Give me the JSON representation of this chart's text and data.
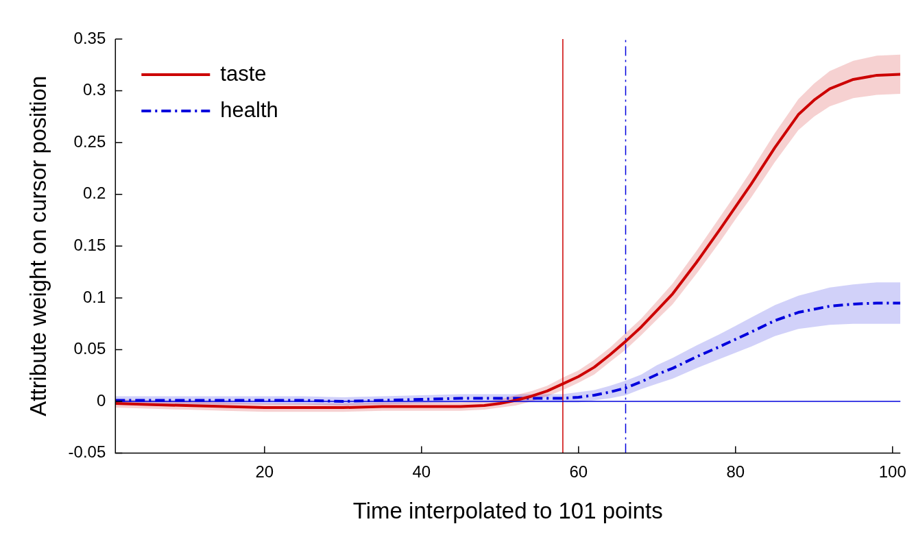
{
  "chart_data": {
    "type": "line",
    "xlabel": "Time interpolated to 101 points",
    "ylabel": "Attribute weight on cursor position",
    "x": [
      1,
      5,
      10,
      15,
      20,
      25,
      30,
      35,
      40,
      45,
      48,
      50,
      52,
      54,
      56,
      58,
      60,
      62,
      64,
      66,
      68,
      70,
      72,
      75,
      78,
      80,
      82,
      85,
      88,
      90,
      92,
      95,
      98,
      101
    ],
    "series": [
      {
        "name": "taste",
        "color": "#cc0000",
        "line_style": "solid",
        "values": [
          -0.002,
          -0.003,
          -0.004,
          -0.005,
          -0.006,
          -0.006,
          -0.006,
          -0.005,
          -0.005,
          -0.005,
          -0.004,
          -0.002,
          0.001,
          0.005,
          0.01,
          0.017,
          0.024,
          0.033,
          0.045,
          0.058,
          0.072,
          0.088,
          0.104,
          0.134,
          0.166,
          0.188,
          0.21,
          0.245,
          0.277,
          0.291,
          0.302,
          0.311,
          0.315,
          0.316
        ],
        "lower": [
          -0.006,
          -0.007,
          -0.008,
          -0.009,
          -0.01,
          -0.01,
          -0.01,
          -0.009,
          -0.009,
          -0.009,
          -0.008,
          -0.006,
          -0.004,
          0.0,
          0.005,
          0.011,
          0.018,
          0.026,
          0.038,
          0.05,
          0.064,
          0.079,
          0.094,
          0.123,
          0.154,
          0.176,
          0.197,
          0.231,
          0.262,
          0.275,
          0.285,
          0.293,
          0.296,
          0.297
        ],
        "upper": [
          0.002,
          0.001,
          0.0,
          -0.001,
          -0.002,
          -0.002,
          -0.002,
          -0.001,
          -0.001,
          -0.001,
          0.0,
          0.002,
          0.006,
          0.01,
          0.015,
          0.023,
          0.03,
          0.04,
          0.052,
          0.066,
          0.08,
          0.097,
          0.114,
          0.145,
          0.178,
          0.2,
          0.223,
          0.259,
          0.292,
          0.307,
          0.319,
          0.329,
          0.334,
          0.335
        ]
      },
      {
        "name": "health",
        "color": "#0000dd",
        "line_style": "dashed",
        "values": [
          0.001,
          0.001,
          0.001,
          0.001,
          0.001,
          0.001,
          0.0,
          0.001,
          0.002,
          0.003,
          0.003,
          0.003,
          0.003,
          0.003,
          0.003,
          0.003,
          0.004,
          0.006,
          0.009,
          0.013,
          0.019,
          0.026,
          0.032,
          0.043,
          0.053,
          0.06,
          0.067,
          0.078,
          0.086,
          0.089,
          0.092,
          0.094,
          0.095,
          0.095
        ],
        "lower": [
          -0.003,
          -0.003,
          -0.003,
          -0.003,
          -0.003,
          -0.003,
          -0.004,
          -0.003,
          -0.002,
          -0.001,
          -0.001,
          -0.001,
          -0.001,
          -0.001,
          -0.001,
          -0.001,
          -0.001,
          0.001,
          0.003,
          0.006,
          0.012,
          0.017,
          0.022,
          0.032,
          0.041,
          0.047,
          0.053,
          0.063,
          0.07,
          0.072,
          0.074,
          0.075,
          0.075,
          0.075
        ],
        "upper": [
          0.005,
          0.005,
          0.005,
          0.005,
          0.005,
          0.005,
          0.004,
          0.005,
          0.006,
          0.007,
          0.007,
          0.007,
          0.007,
          0.007,
          0.007,
          0.007,
          0.009,
          0.011,
          0.015,
          0.02,
          0.026,
          0.035,
          0.042,
          0.054,
          0.065,
          0.073,
          0.081,
          0.093,
          0.102,
          0.106,
          0.11,
          0.113,
          0.115,
          0.115
        ]
      }
    ],
    "ref_lines": [
      {
        "axis": "x",
        "value": 58,
        "color": "#cc0000",
        "line_style": "solid"
      },
      {
        "axis": "x",
        "value": 66,
        "color": "#0000dd",
        "line_style": "dashed"
      },
      {
        "axis": "y",
        "value": 0,
        "color": "#0000dd",
        "line_style": "solid"
      }
    ],
    "xlim": [
      1,
      101
    ],
    "xticks": [
      20,
      40,
      60,
      80,
      100
    ],
    "ylim": [
      -0.05,
      0.35
    ],
    "yticks": [
      -0.05,
      0,
      0.05,
      0.1,
      0.15,
      0.2,
      0.25,
      0.3,
      0.35
    ],
    "grid": false,
    "legend": "top left",
    "marker": "none"
  }
}
